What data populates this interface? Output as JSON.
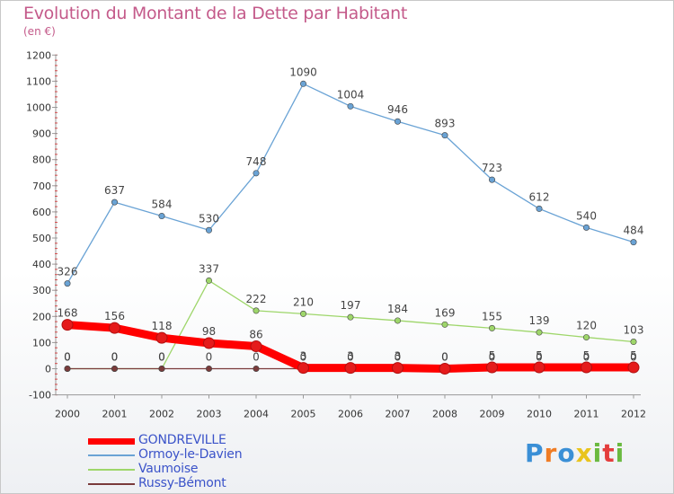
{
  "title": "Evolution du Montant de la Dette par Habitant",
  "subtitle": "(en €)",
  "logo": {
    "letters": [
      "P",
      "r",
      "o",
      "x",
      "i",
      "t",
      "i"
    ],
    "colors": [
      "#3a8fd6",
      "#f07c24",
      "#3a8fd6",
      "#e9c41d",
      "#6ab940",
      "#e43d3d",
      "#6ab940"
    ]
  },
  "chart_data": {
    "type": "line",
    "title": "Evolution du Montant de la Dette par Habitant",
    "subtitle": "(en €)",
    "x": [
      "2000",
      "2001",
      "2002",
      "2003",
      "2004",
      "2005",
      "2006",
      "2007",
      "2008",
      "2009",
      "2010",
      "2011",
      "2012"
    ],
    "y_ticks": [
      "-100",
      "0",
      "100",
      "200",
      "300",
      "400",
      "500",
      "600",
      "700",
      "800",
      "900",
      "1000",
      "1100",
      "1200"
    ],
    "ylim": [
      -100,
      1200
    ],
    "grid": false,
    "legend_position": "bottom-left",
    "series": [
      {
        "name": "GONDREVILLE",
        "color": "#ff0000",
        "values": [
          168,
          156,
          118,
          98,
          86,
          3,
          3,
          3,
          0,
          5,
          5,
          5,
          5
        ],
        "labels": [
          "168",
          "156",
          "118",
          "98",
          "86",
          "3",
          "3",
          "3",
          "0",
          "5",
          "5",
          "5",
          "5"
        ]
      },
      {
        "name": "Ormoy-le-Davien",
        "color": "#6aa3d5",
        "values": [
          326,
          637,
          584,
          530,
          748,
          1090,
          1004,
          946,
          893,
          723,
          612,
          540,
          484
        ],
        "labels": [
          "326",
          "637",
          "584",
          "530",
          "748",
          "1090",
          "1004",
          "946",
          "893",
          "723",
          "612",
          "540",
          "484"
        ]
      },
      {
        "name": "Vaumoise",
        "color": "#9ed66a",
        "values": [
          0,
          0,
          0,
          337,
          222,
          210,
          197,
          184,
          169,
          155,
          139,
          120,
          103
        ],
        "labels": [
          "0",
          "0",
          "0",
          "337",
          "222",
          "210",
          "197",
          "184",
          "169",
          "155",
          "139",
          "120",
          "103"
        ]
      },
      {
        "name": "Russy-Bémont",
        "color": "#7a3b3b",
        "values": [
          0,
          0,
          0,
          0,
          0,
          0,
          0,
          0,
          0,
          0,
          0,
          0,
          0
        ],
        "labels": [
          "0",
          "0",
          "0",
          "0",
          "0",
          "0",
          "0",
          "0",
          "0",
          "0",
          "0",
          "0",
          "0"
        ]
      }
    ]
  }
}
